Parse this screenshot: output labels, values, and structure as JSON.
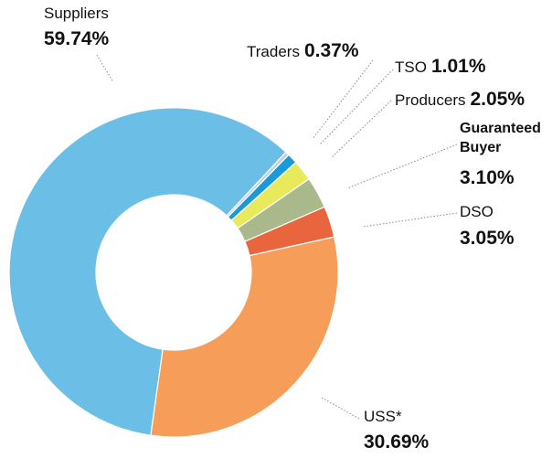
{
  "chart_data": {
    "type": "donut",
    "categories": [
      "Suppliers",
      "Traders",
      "TSO",
      "Producers",
      "Guaranteed Buyer",
      "DSO",
      "USS*"
    ],
    "values": [
      59.74,
      0.37,
      1.01,
      2.05,
      3.1,
      3.05,
      30.69
    ],
    "value_labels": [
      "59.74%",
      "0.37%",
      "1.01%",
      "2.05%",
      "3.10%",
      "3.05%",
      "30.69%"
    ],
    "colors": [
      "#6bbfe6",
      "#c9cdd1",
      "#1a9bd7",
      "#e9e95c",
      "#a9b98b",
      "#e8653d",
      "#f59d59"
    ]
  }
}
